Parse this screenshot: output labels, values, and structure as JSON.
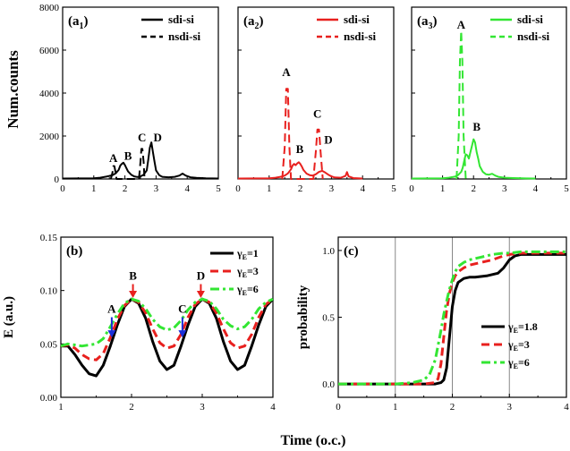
{
  "figure": {
    "ylabel_top": "Num.counts",
    "xlabel_bottom": "Time (o.c.)"
  },
  "chart_data": [
    {
      "type": "line",
      "panel": "(a1)",
      "panel_letter": "a",
      "panel_sub": "1",
      "xlim": [
        0,
        5
      ],
      "ylim": [
        0,
        8000
      ],
      "xticks": [
        "0",
        "1",
        "2",
        "3",
        "4",
        "5"
      ],
      "yticks": [
        "0",
        "2000",
        "4000",
        "6000",
        "8000"
      ],
      "legend": [
        "sdi-si",
        "nsdi-si"
      ],
      "color": "#000000",
      "series": [
        {
          "name": "sdi-si",
          "style": "solid",
          "x": [
            0,
            1.0,
            1.2,
            1.4,
            1.5,
            1.6,
            1.7,
            1.8,
            1.85,
            1.9,
            1.95,
            2.0,
            2.05,
            2.1,
            2.2,
            2.3,
            2.4,
            2.5,
            2.6,
            2.7,
            2.75,
            2.8,
            2.85,
            2.9,
            2.95,
            3.0,
            3.1,
            3.2,
            3.4,
            3.6,
            3.75,
            3.85,
            3.95,
            4.1,
            4.3,
            4.6,
            5.0
          ],
          "y": [
            20,
            30,
            60,
            110,
            140,
            180,
            260,
            420,
            620,
            700,
            760,
            650,
            500,
            350,
            200,
            120,
            90,
            120,
            200,
            400,
            900,
            1450,
            1700,
            1250,
            800,
            400,
            180,
            100,
            80,
            100,
            160,
            250,
            160,
            80,
            50,
            30,
            20
          ]
        },
        {
          "name": "nsdi-si",
          "style": "dash",
          "x": [
            1.55,
            1.6,
            1.63,
            1.66,
            1.7,
            1.73,
            2.45,
            2.5,
            2.53,
            2.56,
            2.6,
            2.63
          ],
          "y": [
            0,
            300,
            600,
            600,
            300,
            0,
            0,
            800,
            1400,
            1400,
            800,
            0
          ]
        }
      ],
      "annotations": [
        {
          "text": "A",
          "x": 1.63,
          "y": 800
        },
        {
          "text": "B",
          "x": 2.1,
          "y": 900
        },
        {
          "text": "C",
          "x": 2.55,
          "y": 1750
        },
        {
          "text": "D",
          "x": 3.05,
          "y": 1750
        }
      ]
    },
    {
      "type": "line",
      "panel": "(a2)",
      "panel_letter": "a",
      "panel_sub": "2",
      "xlim": [
        0,
        5
      ],
      "ylim": [
        0,
        8000
      ],
      "xticks": [
        "0",
        "1",
        "2",
        "3",
        "4",
        "5"
      ],
      "legend": [
        "sdi-si",
        "nsdi-si"
      ],
      "color": "#e8201e",
      "series": [
        {
          "name": "sdi-si",
          "style": "solid",
          "x": [
            0,
            1.0,
            1.2,
            1.4,
            1.5,
            1.6,
            1.7,
            1.75,
            1.8,
            1.85,
            1.9,
            1.95,
            2.0,
            2.05,
            2.1,
            2.2,
            2.3,
            2.4,
            2.5,
            2.6,
            2.7,
            2.8,
            2.9,
            3.0,
            3.1,
            3.3,
            3.45,
            3.5,
            3.55,
            3.7,
            4.0
          ],
          "y": [
            20,
            30,
            60,
            110,
            160,
            260,
            450,
            620,
            700,
            640,
            720,
            780,
            700,
            580,
            420,
            250,
            180,
            160,
            220,
            330,
            380,
            300,
            200,
            120,
            70,
            60,
            140,
            320,
            120,
            40,
            20
          ]
        },
        {
          "name": "nsdi-si",
          "style": "dash",
          "x": [
            1.42,
            1.5,
            1.55,
            1.6,
            1.65,
            1.7,
            2.42,
            2.5,
            2.55,
            2.6,
            2.65,
            2.72
          ],
          "y": [
            0,
            1500,
            4200,
            4200,
            1500,
            0,
            0,
            1300,
            2300,
            2300,
            1300,
            0
          ]
        }
      ],
      "annotations": [
        {
          "text": "A",
          "x": 1.55,
          "y": 4800
        },
        {
          "text": "B",
          "x": 1.98,
          "y": 1200
        },
        {
          "text": "C",
          "x": 2.55,
          "y": 2850
        },
        {
          "text": "D",
          "x": 2.9,
          "y": 1650
        }
      ]
    },
    {
      "type": "line",
      "panel": "(a3)",
      "panel_letter": "a",
      "panel_sub": "3",
      "xlim": [
        0,
        5
      ],
      "ylim": [
        0,
        8000
      ],
      "xticks": [
        "0",
        "1",
        "2",
        "3",
        "4",
        "5"
      ],
      "legend": [
        "sdi-si",
        "nsdi-si"
      ],
      "color": "#33e633",
      "series": [
        {
          "name": "sdi-si",
          "style": "solid",
          "x": [
            0,
            1.0,
            1.2,
            1.4,
            1.5,
            1.6,
            1.65,
            1.7,
            1.75,
            1.8,
            1.85,
            1.9,
            1.95,
            2.0,
            2.05,
            2.1,
            2.15,
            2.2,
            2.3,
            2.4,
            2.5,
            2.6,
            2.7,
            2.8,
            3.0,
            3.3,
            3.7,
            4.0
          ],
          "y": [
            20,
            30,
            60,
            110,
            180,
            330,
            520,
            850,
            1150,
            1100,
            950,
            1250,
            1550,
            1850,
            1700,
            1250,
            950,
            600,
            330,
            220,
            200,
            240,
            160,
            100,
            60,
            40,
            25,
            20
          ]
        },
        {
          "name": "nsdi-si",
          "style": "dash",
          "x": [
            1.45,
            1.52,
            1.56,
            1.6,
            1.64,
            1.68,
            1.75
          ],
          "y": [
            0,
            2000,
            5500,
            6900,
            5500,
            2000,
            0
          ]
        }
      ],
      "annotations": [
        {
          "text": "A",
          "x": 1.6,
          "y": 7000
        },
        {
          "text": "B",
          "x": 2.1,
          "y": 2250
        }
      ]
    },
    {
      "type": "line",
      "panel": "(b)",
      "xlim": [
        1,
        4
      ],
      "ylim": [
        0,
        0.15
      ],
      "xticks": [
        "1",
        "2",
        "3",
        "4"
      ],
      "yticks": [
        "0.00",
        "0.05",
        "0.10",
        "0.15"
      ],
      "ylabel": "E (a.u.)",
      "legend": [
        {
          "base": "γ",
          "sub": "E",
          "rest": "=1"
        },
        {
          "base": "γ",
          "sub": "E",
          "rest": "=3"
        },
        {
          "base": "γ",
          "sub": "E",
          "rest": "=6"
        }
      ],
      "legend_colors": [
        "#000000",
        "#e8201e",
        "#33e633"
      ],
      "series": [
        {
          "name": "γE=1",
          "style": "solid",
          "color": "#000000",
          "x": [
            1.0,
            1.1,
            1.2,
            1.3,
            1.4,
            1.5,
            1.6,
            1.7,
            1.8,
            1.9,
            2.0,
            2.1,
            2.2,
            2.3,
            2.4,
            2.5,
            2.6,
            2.7,
            2.8,
            2.9,
            3.0,
            3.1,
            3.2,
            3.3,
            3.4,
            3.5,
            3.6,
            3.7,
            3.8,
            3.9,
            4.0
          ],
          "y": [
            0.048,
            0.048,
            0.04,
            0.03,
            0.022,
            0.02,
            0.03,
            0.048,
            0.068,
            0.085,
            0.092,
            0.088,
            0.074,
            0.052,
            0.034,
            0.026,
            0.03,
            0.048,
            0.068,
            0.085,
            0.092,
            0.088,
            0.074,
            0.052,
            0.034,
            0.026,
            0.03,
            0.048,
            0.068,
            0.085,
            0.092
          ]
        },
        {
          "name": "γE=3",
          "style": "dash",
          "color": "#e8201e",
          "x": [
            1.0,
            1.1,
            1.2,
            1.3,
            1.4,
            1.5,
            1.6,
            1.7,
            1.8,
            1.9,
            2.0,
            2.1,
            2.2,
            2.3,
            2.4,
            2.5,
            2.6,
            2.7,
            2.8,
            2.9,
            3.0,
            3.1,
            3.2,
            3.3,
            3.4,
            3.5,
            3.6,
            3.7,
            3.8,
            3.9,
            4.0
          ],
          "y": [
            0.048,
            0.049,
            0.046,
            0.04,
            0.036,
            0.035,
            0.041,
            0.056,
            0.073,
            0.086,
            0.092,
            0.089,
            0.079,
            0.064,
            0.051,
            0.046,
            0.048,
            0.059,
            0.075,
            0.087,
            0.092,
            0.089,
            0.079,
            0.064,
            0.051,
            0.046,
            0.048,
            0.059,
            0.075,
            0.087,
            0.092
          ]
        },
        {
          "name": "γE=6",
          "style": "dashdot",
          "color": "#33e633",
          "x": [
            1.0,
            1.1,
            1.2,
            1.3,
            1.4,
            1.5,
            1.6,
            1.7,
            1.8,
            1.9,
            2.0,
            2.1,
            2.2,
            2.3,
            2.4,
            2.5,
            2.6,
            2.7,
            2.8,
            2.9,
            3.0,
            3.1,
            3.2,
            3.3,
            3.4,
            3.5,
            3.6,
            3.7,
            3.8,
            3.9,
            4.0
          ],
          "y": [
            0.048,
            0.05,
            0.049,
            0.048,
            0.049,
            0.05,
            0.055,
            0.066,
            0.078,
            0.088,
            0.092,
            0.09,
            0.083,
            0.073,
            0.066,
            0.063,
            0.065,
            0.072,
            0.082,
            0.089,
            0.092,
            0.09,
            0.083,
            0.073,
            0.067,
            0.064,
            0.066,
            0.073,
            0.083,
            0.089,
            0.092
          ]
        }
      ],
      "arrows": [
        {
          "text": "A",
          "x": 1.72,
          "y": 0.075,
          "y_end": 0.056,
          "color": "#1a2fd8"
        },
        {
          "text": "B",
          "x": 2.02,
          "y": 0.106,
          "y_end": 0.093,
          "color": "#e8201e"
        },
        {
          "text": "C",
          "x": 2.72,
          "y": 0.075,
          "y_end": 0.056,
          "color": "#1a2fd8"
        },
        {
          "text": "D",
          "x": 2.98,
          "y": 0.106,
          "y_end": 0.093,
          "color": "#e8201e"
        }
      ]
    },
    {
      "type": "line",
      "panel": "(c)",
      "xlim": [
        0,
        4
      ],
      "ylim": [
        -0.1,
        1.1
      ],
      "xticks": [
        "0",
        "1",
        "2",
        "3",
        "4"
      ],
      "yticks": [
        "0.0",
        "0.5",
        "1.0"
      ],
      "ylabel": "probability",
      "vlines": [
        1,
        2,
        3
      ],
      "legend": [
        {
          "base": "γ",
          "sub": "E",
          "rest": "=1.8"
        },
        {
          "base": "γ",
          "sub": "E",
          "rest": "=3"
        },
        {
          "base": "γ",
          "sub": "E",
          "rest": "=6"
        }
      ],
      "legend_colors": [
        "#000000",
        "#e8201e",
        "#33e633"
      ],
      "series": [
        {
          "name": "γE=1.8",
          "style": "solid",
          "color": "#000000",
          "x": [
            0,
            1.0,
            1.5,
            1.7,
            1.8,
            1.85,
            1.9,
            1.95,
            2.0,
            2.05,
            2.1,
            2.2,
            2.3,
            2.4,
            2.6,
            2.8,
            2.9,
            3.0,
            3.1,
            3.2,
            3.5,
            4.0
          ],
          "y": [
            0,
            0,
            0,
            0,
            0.01,
            0.03,
            0.12,
            0.35,
            0.58,
            0.7,
            0.76,
            0.79,
            0.8,
            0.8,
            0.81,
            0.83,
            0.87,
            0.93,
            0.96,
            0.97,
            0.97,
            0.97
          ]
        },
        {
          "name": "γE=3",
          "style": "dash",
          "color": "#e8201e",
          "x": [
            0,
            1.0,
            1.5,
            1.7,
            1.75,
            1.8,
            1.85,
            1.9,
            1.95,
            2.0,
            2.05,
            2.1,
            2.2,
            2.3,
            2.5,
            2.7,
            2.9,
            3.0,
            3.2,
            3.5,
            4.0
          ],
          "y": [
            0,
            0,
            0,
            0.01,
            0.04,
            0.15,
            0.35,
            0.55,
            0.68,
            0.76,
            0.81,
            0.84,
            0.87,
            0.89,
            0.91,
            0.93,
            0.96,
            0.97,
            0.98,
            0.98,
            0.98
          ]
        },
        {
          "name": "γE=6",
          "style": "dashdot",
          "color": "#33e633",
          "x": [
            0,
            1.0,
            1.3,
            1.5,
            1.6,
            1.7,
            1.8,
            1.85,
            1.9,
            1.95,
            2.0,
            2.05,
            2.1,
            2.2,
            2.3,
            2.5,
            2.7,
            2.9,
            3.0,
            3.2,
            3.5,
            4.0
          ],
          "y": [
            0,
            0,
            0.01,
            0.03,
            0.07,
            0.18,
            0.4,
            0.52,
            0.62,
            0.71,
            0.78,
            0.84,
            0.88,
            0.91,
            0.93,
            0.95,
            0.97,
            0.98,
            0.98,
            0.99,
            0.99,
            0.99
          ]
        }
      ]
    }
  ]
}
